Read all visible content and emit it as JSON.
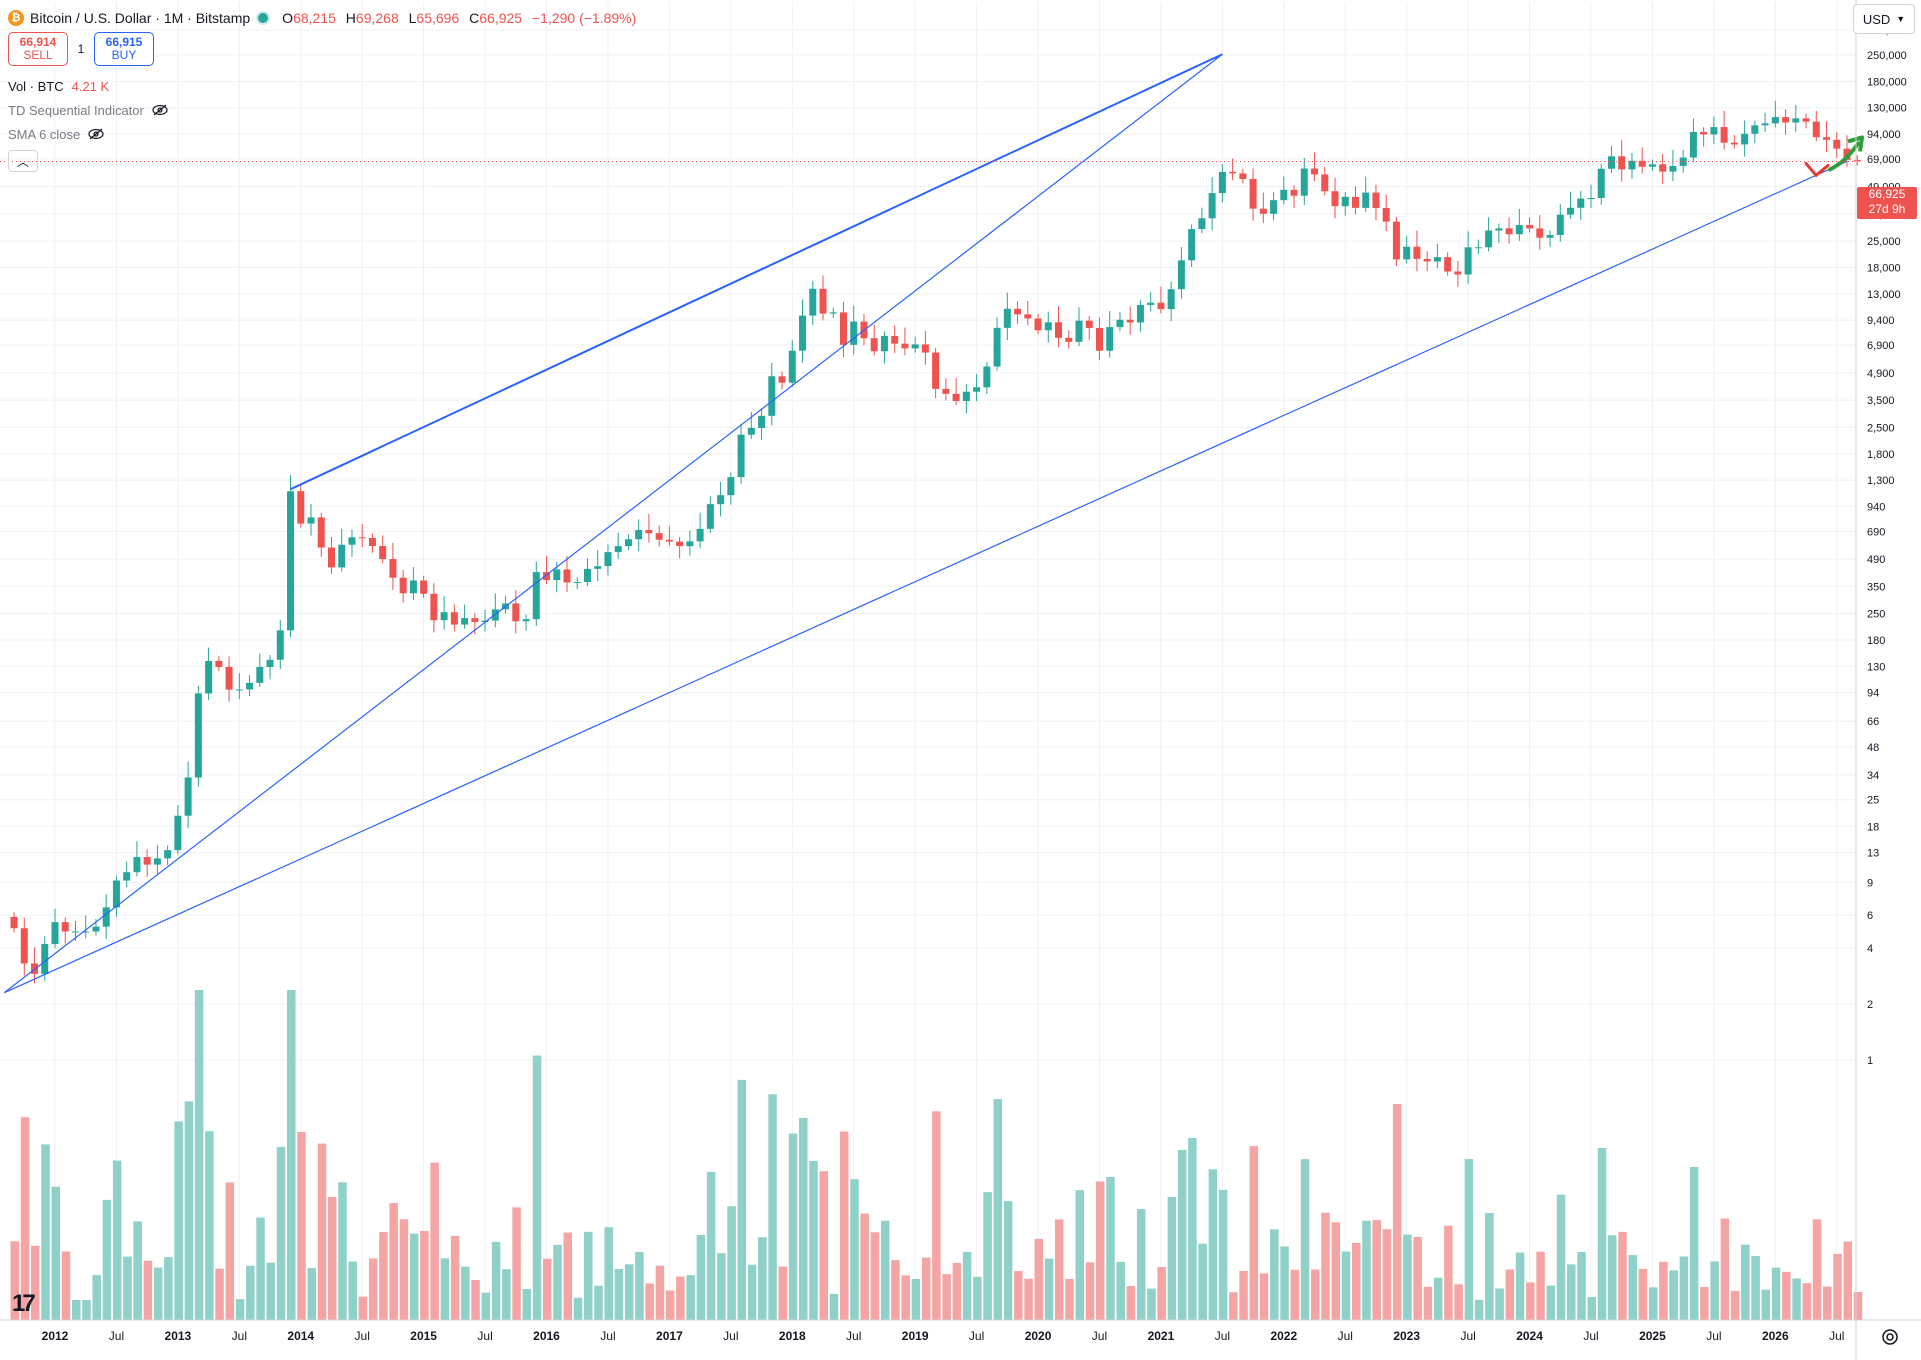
{
  "header": {
    "symbol_title": "Bitcoin / U.S. Dollar · 1M · Bitstamp",
    "coin_icon": "bitcoin-icon",
    "ohlc": [
      {
        "k": "O",
        "v": "68,215"
      },
      {
        "k": "H",
        "v": "69,268"
      },
      {
        "k": "L",
        "v": "65,696"
      },
      {
        "k": "C",
        "v": "66,925"
      }
    ],
    "change": "−1,290 (−1.89%)"
  },
  "trade": {
    "sell_price": "66,914",
    "sell_label": "SELL",
    "qty": "1",
    "buy_price": "66,915",
    "buy_label": "BUY"
  },
  "indicators": {
    "volume_label": "Vol · BTC",
    "volume_value": "4.21 K",
    "td_label": "TD Sequential Indicator",
    "sma_label": "SMA 6 close"
  },
  "currency_button": "USD",
  "price_tag": {
    "price": "66,925",
    "countdown": "27d 9h"
  },
  "colors": {
    "up": "#26a69a",
    "down": "#ef5350",
    "vol_up": "#8fd0c8",
    "vol_down": "#f4a5a3",
    "trendline": "#2962ff",
    "arrow_up": "#2e9e3a"
  },
  "chart_data": {
    "type": "candlestick",
    "title": "Bitcoin / U.S. Dollar · 1M · Bitstamp",
    "y_scale": "log",
    "ylim": [
      0.8,
      350000
    ],
    "y_ticks": [
      "340,000",
      "250,000",
      "180,000",
      "130,000",
      "94,000",
      "69,000",
      "49,000",
      "35,000",
      "25,000",
      "18,000",
      "13,000",
      "9,400",
      "6,900",
      "4,900",
      "3,500",
      "2,500",
      "1,800",
      "1,300",
      "940",
      "690",
      "490",
      "350",
      "250",
      "180",
      "130",
      "94",
      "66",
      "48",
      "34",
      "25",
      "18",
      "13",
      "9",
      "6",
      "4",
      "2",
      "1"
    ],
    "x_ticks": [
      "2012",
      "Jul",
      "2013",
      "Jul",
      "2014",
      "Jul",
      "2015",
      "Jul",
      "2016",
      "Jul",
      "2017",
      "Jul",
      "2018",
      "Jul",
      "2019",
      "Jul",
      "2020",
      "Jul",
      "2021",
      "Jul",
      "2022",
      "Jul",
      "2023",
      "Jul",
      "2024",
      "Jul",
      "2025",
      "Jul",
      "2026",
      "Jul"
    ],
    "x_range": [
      "2011-09",
      "2026-10"
    ],
    "grid": true,
    "last_price": 66925,
    "series": [
      {
        "close_by_month": {
          "start": "2011-09",
          "closes": [
            5.1,
            3.3,
            2.9,
            4.2,
            5.5,
            4.9,
            4.9,
            4.9,
            5.2,
            6.6,
            9.2,
            10.2,
            12.3,
            11.2,
            12.1,
            13.4,
            20.5,
            32.9,
            93.0,
            139,
            129,
            97.5,
            97.7,
            106,
            129,
            141,
            203,
            1134,
            760,
            820,
            565,
            442,
            585,
            641,
            636,
            576,
            490,
            389,
            321,
            376,
            319,
            230,
            254,
            218,
            236,
            225,
            229,
            263,
            283,
            227,
            233,
            417,
            378,
            431,
            367,
            369,
            434,
            449,
            534,
            575,
            626,
            702,
            675,
            622,
            608,
            575,
            610,
            712,
            966,
            1080,
            1350,
            2280,
            2480,
            2880,
            4700,
            4340,
            6450,
            9950,
            13860,
            10200,
            10350,
            6930,
            9240,
            7520,
            6400,
            7730,
            7030,
            6630,
            6970,
            6300,
            4020,
            3780,
            3460,
            3880,
            4100,
            5300,
            8550,
            10820,
            10100,
            9600,
            8300,
            9160,
            7560,
            7190,
            9340,
            8540,
            6440,
            8630,
            9450,
            9140,
            11350,
            11660,
            10780,
            13780,
            19700,
            28980,
            33140,
            45240,
            58800,
            57720,
            53850,
            37330,
            35040,
            41460,
            47100,
            43830,
            61300,
            57000,
            46300,
            38480,
            43190,
            37700,
            45530,
            37640,
            31800,
            19940,
            23300,
            20050,
            19430,
            20490,
            17170,
            16540,
            23140,
            23150,
            28480,
            29270,
            27220,
            30480,
            29230,
            26050,
            26960,
            34650,
            37720,
            42280,
            42580,
            61140,
            71330,
            60650,
            67500,
            62680,
            64600,
            58980,
            63300,
            70220,
            96400,
            93430,
            102400,
            84350,
            82550,
            94200,
            104600,
            107200,
            115800,
            108300,
            114000,
            109500,
            90360,
            87500,
            78400,
            68215,
            66925
          ]
        }
      },
      {
        "name": "Vol · BTC",
        "last_value": "4.21 K"
      }
    ],
    "annotations": [
      {
        "type": "trendline",
        "from": [
          "2011-10",
          2.3
        ],
        "to": [
          "2021-07",
          252000
        ]
      },
      {
        "type": "trendline",
        "from": [
          "2011-10",
          2.3
        ],
        "to": [
          "2026-08",
          67000
        ]
      },
      {
        "type": "arrow",
        "direction": "up",
        "near": "2026-07"
      },
      {
        "type": "check",
        "near": "2026-05"
      }
    ]
  }
}
